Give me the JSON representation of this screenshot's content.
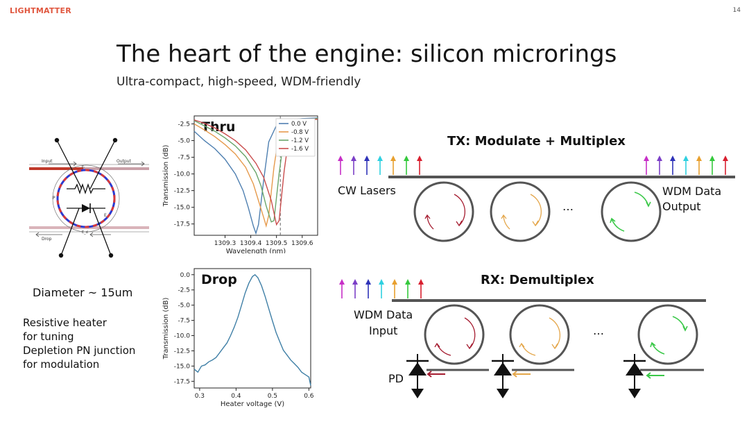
{
  "header": {
    "logo": "LIGHTMATTER",
    "page_number": "14"
  },
  "slide": {
    "title": "The heart of the engine: silicon microrings",
    "subtitle": "Ultra-compact, high-speed, WDM-friendly"
  },
  "ring_diagram": {
    "input_label": "Input",
    "output_label": "Output",
    "drop_label": "Drop",
    "p_label": "P",
    "e_label": "E",
    "ei_label": "Eᵢ",
    "ed_label": "E_d",
    "diameter_label": "Diameter ~ 15um",
    "notes": [
      "Resistive heater",
      "for tuning",
      "Depletion PN junction",
      "for modulation"
    ]
  },
  "tx": {
    "title": "TX: Modulate + Multiplex",
    "lasers_label": "CW Lasers",
    "output_label_1": "WDM Data",
    "output_label_2": "Output",
    "ellipsis": "…",
    "colors": [
      "#c72fc7",
      "#7b3fc7",
      "#2f33b8",
      "#2fd0e0",
      "#e8a02f",
      "#35c93d",
      "#d81f2f"
    ]
  },
  "rx": {
    "title": "RX: Demultiplex",
    "input_label_1": "WDM Data",
    "input_label_2": "Input",
    "pd_label": "PD",
    "ellipsis": "…"
  },
  "chart_data": [
    {
      "type": "line",
      "title": "Thru",
      "xlabel": "Wavelength (nm)",
      "ylabel": "Transmission (dB)",
      "xlim": [
        1309.18,
        1309.66
      ],
      "ylim": [
        -19.2,
        -1.3
      ],
      "xticks": [
        1309.3,
        1309.4,
        1309.5,
        1309.6
      ],
      "xtick_labels": [
        "1309.3",
        "1309.4",
        "1309.5",
        "1309.6"
      ],
      "yticks": [
        -2.5,
        -5.0,
        -7.5,
        -10.0,
        -12.5,
        -15.0,
        -17.5
      ],
      "ytick_labels": [
        "-2.5",
        "-5.0",
        "-7.5",
        "-10.0",
        "-12.5",
        "-15.0",
        "-17.5"
      ],
      "legend_position": "top-right",
      "series": [
        {
          "name": "0.0 V",
          "color": "#4e7fb0",
          "x": [
            1309.18,
            1309.22,
            1309.26,
            1309.3,
            1309.34,
            1309.37,
            1309.39,
            1309.41,
            1309.42,
            1309.43,
            1309.45,
            1309.47,
            1309.5,
            1309.55,
            1309.6,
            1309.66
          ],
          "y": [
            -3.6,
            -5.0,
            -6.2,
            -7.8,
            -10.0,
            -12.5,
            -15.0,
            -17.8,
            -18.9,
            -17.6,
            -11.0,
            -5.2,
            -2.7,
            -1.9,
            -1.7,
            -1.6
          ]
        },
        {
          "name": "-0.8 V",
          "color": "#e69a4c",
          "x": [
            1309.18,
            1309.22,
            1309.26,
            1309.3,
            1309.34,
            1309.38,
            1309.41,
            1309.43,
            1309.45,
            1309.46,
            1309.47,
            1309.49,
            1309.51,
            1309.55,
            1309.6,
            1309.66
          ],
          "y": [
            -2.5,
            -3.4,
            -4.4,
            -5.6,
            -7.0,
            -9.0,
            -11.5,
            -14.0,
            -16.5,
            -17.8,
            -16.2,
            -9.0,
            -4.0,
            -2.2,
            -1.8,
            -1.7
          ]
        },
        {
          "name": "-1.2 V",
          "color": "#6aa56a",
          "x": [
            1309.18,
            1309.22,
            1309.26,
            1309.3,
            1309.34,
            1309.38,
            1309.42,
            1309.44,
            1309.46,
            1309.48,
            1309.49,
            1309.51,
            1309.53,
            1309.56,
            1309.6,
            1309.66
          ],
          "y": [
            -2.0,
            -2.8,
            -3.6,
            -4.6,
            -5.8,
            -7.4,
            -9.8,
            -11.8,
            -14.8,
            -17.2,
            -17.0,
            -10.0,
            -4.2,
            -2.3,
            -1.9,
            -1.7
          ]
        },
        {
          "name": "-1.6 V",
          "color": "#c94c4c",
          "x": [
            1309.18,
            1309.22,
            1309.26,
            1309.3,
            1309.34,
            1309.38,
            1309.42,
            1309.45,
            1309.48,
            1309.5,
            1309.51,
            1309.53,
            1309.55,
            1309.58,
            1309.62,
            1309.66
          ],
          "y": [
            -1.9,
            -2.4,
            -3.1,
            -4.0,
            -5.0,
            -6.4,
            -8.4,
            -10.5,
            -14.0,
            -17.6,
            -17.0,
            -9.5,
            -4.0,
            -2.4,
            -1.9,
            -1.8
          ]
        }
      ],
      "annotations": [
        {
          "type": "dashed-vline",
          "x": 1309.515
        }
      ]
    },
    {
      "type": "line",
      "title": "Drop",
      "xlabel": "Heater voltage (V)",
      "ylabel": "Transmission (dB)",
      "xlim": [
        0.285,
        0.605
      ],
      "ylim": [
        -18.6,
        1.0
      ],
      "xticks": [
        0.3,
        0.4,
        0.5,
        0.6
      ],
      "xtick_labels": [
        "0.3",
        "0.4",
        "0.5",
        "0.6"
      ],
      "yticks": [
        0.0,
        -2.5,
        -5.0,
        -7.5,
        -10.0,
        -12.5,
        -15.0,
        -17.5
      ],
      "ytick_labels": [
        "0.0",
        "-2.5",
        "-5.0",
        "-7.5",
        "-10.0",
        "-12.5",
        "-15.0",
        "-17.5"
      ],
      "series": [
        {
          "name": "",
          "color": "#3f7fa6",
          "x": [
            0.285,
            0.295,
            0.305,
            0.315,
            0.325,
            0.335,
            0.345,
            0.355,
            0.365,
            0.375,
            0.385,
            0.395,
            0.405,
            0.415,
            0.425,
            0.435,
            0.445,
            0.452,
            0.46,
            0.47,
            0.48,
            0.49,
            0.5,
            0.51,
            0.52,
            0.53,
            0.54,
            0.55,
            0.56,
            0.57,
            0.58,
            0.59,
            0.6,
            0.605
          ],
          "y": [
            -15.5,
            -16.0,
            -15.0,
            -14.8,
            -14.3,
            -14.0,
            -13.6,
            -12.8,
            -12.0,
            -11.2,
            -10.0,
            -8.6,
            -7.0,
            -5.0,
            -3.0,
            -1.4,
            -0.3,
            0.0,
            -0.5,
            -1.8,
            -3.6,
            -5.6,
            -7.6,
            -9.5,
            -11.0,
            -12.4,
            -13.2,
            -14.0,
            -14.6,
            -15.2,
            -16.0,
            -16.4,
            -16.8,
            -18.2
          ]
        }
      ]
    }
  ]
}
